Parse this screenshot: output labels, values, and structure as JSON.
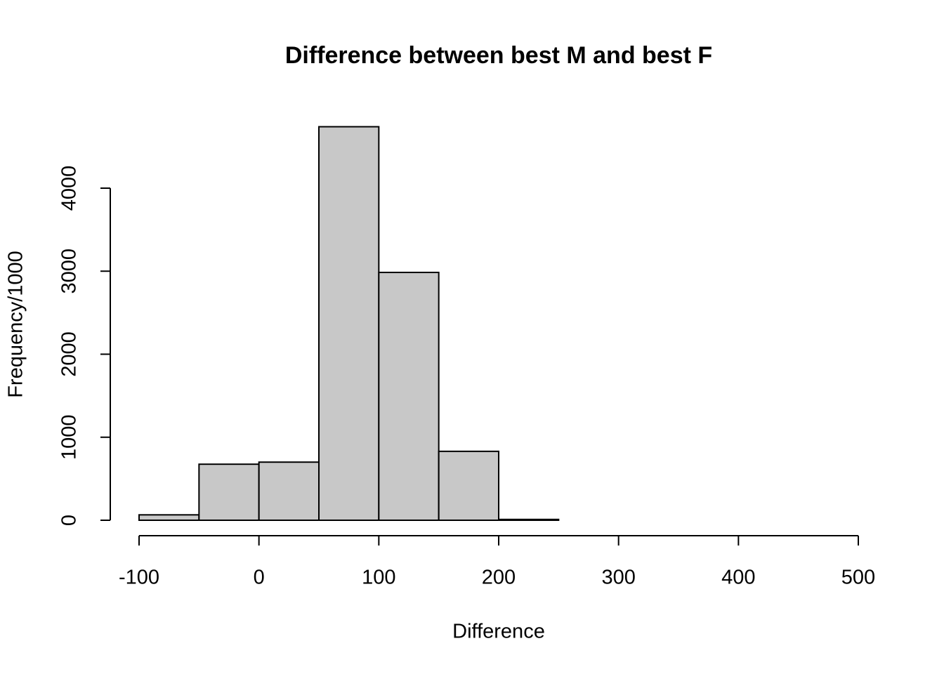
{
  "chart_data": {
    "type": "histogram",
    "title": "Difference between best M and best F",
    "x_label": "Difference",
    "y_label": "Frequency/1000",
    "bins": [
      -100,
      -50,
      0,
      50,
      100,
      150,
      200,
      250,
      300,
      350,
      400,
      450,
      500
    ],
    "counts": [
      65,
      675,
      700,
      4740,
      2985,
      830,
      10,
      0,
      0,
      0,
      0,
      0
    ],
    "color": "#c8c8c8",
    "xlim": [
      -100,
      500
    ],
    "xticks": [
      -100,
      0,
      100,
      200,
      300,
      400,
      500
    ],
    "ylim": [
      0,
      4740
    ],
    "yticks": [
      0,
      1000,
      2000,
      3000,
      4000
    ]
  }
}
